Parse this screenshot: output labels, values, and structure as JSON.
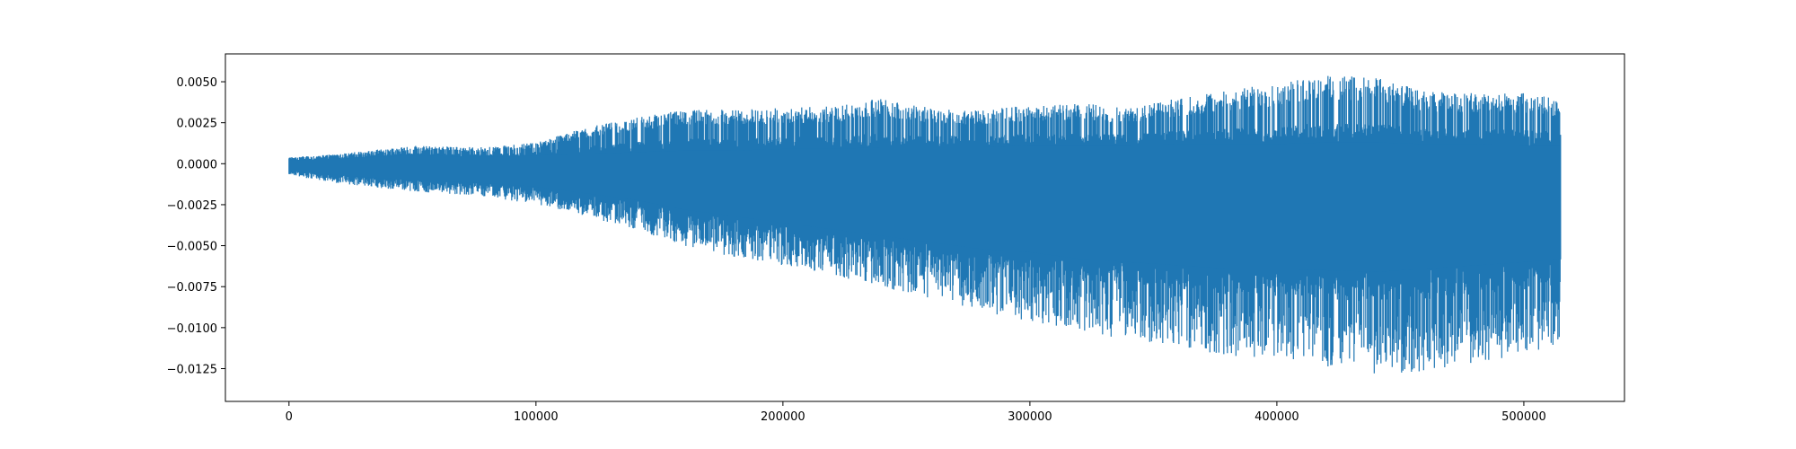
{
  "chart_data": {
    "type": "line",
    "title": "",
    "xlabel": "",
    "ylabel": "",
    "xlim": [
      -25750,
      540750
    ],
    "ylim": [
      -0.0145,
      0.0067
    ],
    "grid": false,
    "legend": "none",
    "x_ticks": [
      {
        "value": 0,
        "label": "0"
      },
      {
        "value": 100000,
        "label": "100000"
      },
      {
        "value": 200000,
        "label": "200000"
      },
      {
        "value": 300000,
        "label": "300000"
      },
      {
        "value": 400000,
        "label": "400000"
      },
      {
        "value": 500000,
        "label": "500000"
      }
    ],
    "y_ticks": [
      {
        "value": 0.005,
        "label": "0.0050"
      },
      {
        "value": 0.0025,
        "label": "0.0025"
      },
      {
        "value": 0.0,
        "label": "0.0000"
      },
      {
        "value": -0.0025,
        "label": "−0.0025"
      },
      {
        "value": -0.005,
        "label": "−0.0050"
      },
      {
        "value": -0.0075,
        "label": "−0.0075"
      },
      {
        "value": -0.01,
        "label": "−0.0100"
      },
      {
        "value": -0.0125,
        "label": "−0.0125"
      }
    ],
    "series": [
      {
        "color": "#1f77b4",
        "x_start": 0,
        "x_end": 515000,
        "envelope": {
          "x": [
            0,
            20000,
            50000,
            80000,
            100000,
            120000,
            140000,
            160000,
            180000,
            200000,
            220000,
            240000,
            260000,
            280000,
            300000,
            320000,
            340000,
            360000,
            380000,
            400000,
            420000,
            440000,
            460000,
            480000,
            500000,
            515000
          ],
          "upper": [
            0.0004,
            0.0006,
            0.0011,
            0.001,
            0.0013,
            0.0022,
            0.0028,
            0.0033,
            0.0033,
            0.0034,
            0.0035,
            0.004,
            0.0034,
            0.0033,
            0.0036,
            0.0037,
            0.0034,
            0.004,
            0.0045,
            0.0049,
            0.0054,
            0.0053,
            0.0044,
            0.0043,
            0.0043,
            0.004
          ],
          "lower": [
            -0.0007,
            -0.0012,
            -0.0017,
            -0.002,
            -0.0025,
            -0.0032,
            -0.004,
            -0.005,
            -0.0057,
            -0.0062,
            -0.0068,
            -0.0076,
            -0.0082,
            -0.009,
            -0.0096,
            -0.0103,
            -0.0107,
            -0.0112,
            -0.0117,
            -0.012,
            -0.0124,
            -0.0128,
            -0.0127,
            -0.0122,
            -0.0116,
            -0.011
          ],
          "core_upper": [
            0.0002,
            0.0003,
            0.0005,
            0.0004,
            0.0005,
            0.0006,
            0.0007,
            0.0008,
            0.0008,
            0.0009,
            0.0009,
            0.001,
            0.001,
            0.001,
            0.0011,
            0.0011,
            0.0011,
            0.0012,
            0.0012,
            0.0012,
            0.0013,
            0.0013,
            0.0012,
            0.0012,
            0.0011,
            0.0011
          ],
          "core_lower": [
            -0.0004,
            -0.0007,
            -0.001,
            -0.0012,
            -0.0014,
            -0.0018,
            -0.0022,
            -0.0028,
            -0.0032,
            -0.0036,
            -0.004,
            -0.0044,
            -0.0048,
            -0.0052,
            -0.0054,
            -0.0058,
            -0.006,
            -0.0062,
            -0.0064,
            -0.0064,
            -0.0065,
            -0.0066,
            -0.0064,
            -0.0062,
            -0.006,
            -0.0058
          ]
        }
      }
    ]
  }
}
